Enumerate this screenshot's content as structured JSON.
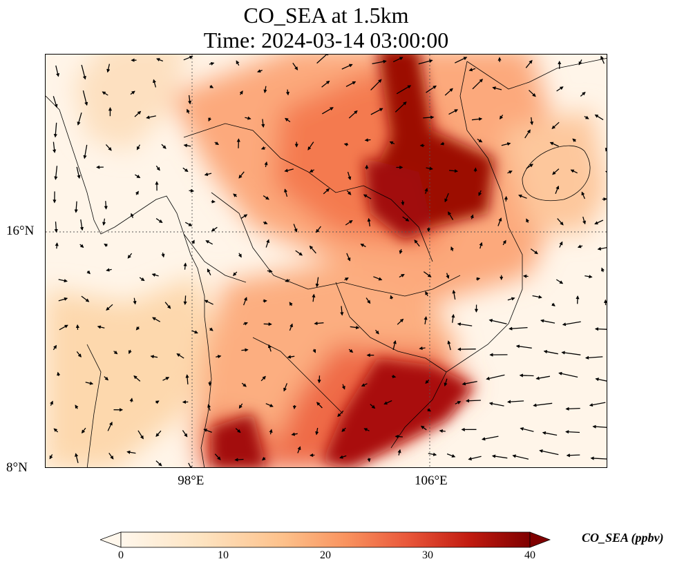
{
  "title": {
    "line1": "CO_SEA at 1.5km",
    "line2": "Time: 2024-03-14 03:00:00"
  },
  "map": {
    "projection": "PlateCarree",
    "extent": {
      "lon_min": 93,
      "lon_max": 112,
      "lat_min": 8,
      "lat_max": 22
    },
    "gridlines": "dotted",
    "lon_ticks": [
      {
        "value": 98,
        "label": "98°E"
      },
      {
        "value": 106,
        "label": "106°E"
      }
    ],
    "lat_ticks": [
      {
        "value": 16,
        "label": "16°N"
      },
      {
        "value": 8,
        "label": "8°N"
      }
    ],
    "field_colormap": "OrRd",
    "vector_color": "#000000"
  },
  "colorbar": {
    "label": "CO_SEA (ppbv)",
    "min": 0,
    "max": 40,
    "extend": "both",
    "ticks": [
      {
        "value": 0,
        "label": "0"
      },
      {
        "value": 10,
        "label": "10"
      },
      {
        "value": 20,
        "label": "20"
      },
      {
        "value": 30,
        "label": "30"
      },
      {
        "value": 40,
        "label": "40"
      }
    ],
    "colors": [
      "#fff7ec",
      "#fee8c8",
      "#fdd49e",
      "#fdbb84",
      "#fc8d59",
      "#ef6548",
      "#d7301f",
      "#b30000",
      "#7f0000"
    ]
  }
}
